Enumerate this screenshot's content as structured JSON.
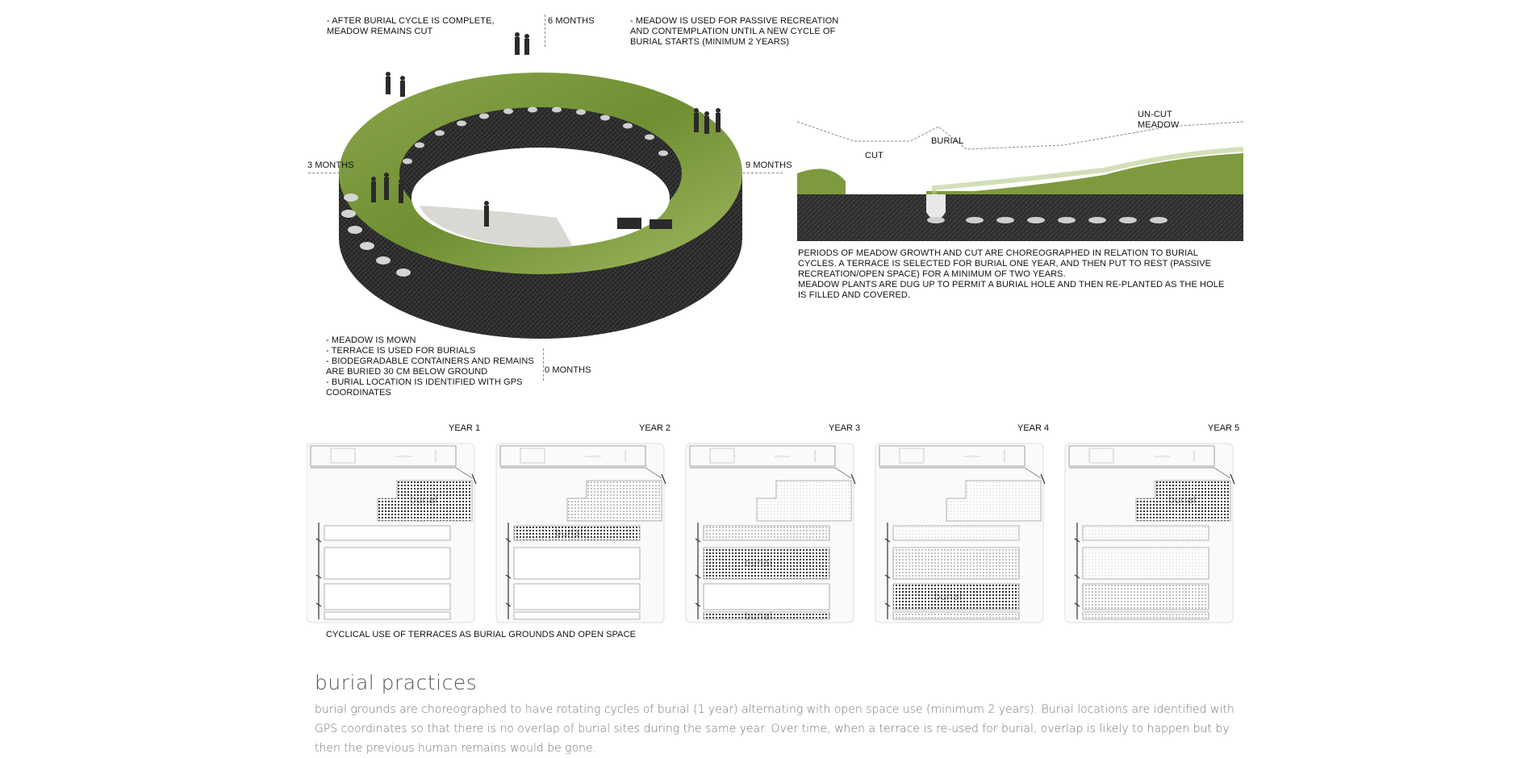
{
  "ring": {
    "labels": {
      "six_months": "6 MONTHS",
      "three_months": "3 MONTHS",
      "nine_months": "9 MONTHS",
      "zero_months": "0 MONTHS"
    },
    "notes": {
      "top_left": "- AFTER BURIAL CYCLE IS COMPLETE,\nMEADOW REMAINS CUT",
      "top_right": "- MEADOW IS USED FOR PASSIVE RECREATION\nAND CONTEMPLATION UNTIL A NEW CYCLE OF\nBURIAL STARTS (MINIMUM 2 YEARS)",
      "bottom_left": "- MEADOW IS MOWN\n- TERRACE IS USED FOR BURIALS\n- BIODEGRADABLE CONTAINERS AND REMAINS\nARE BURIED 30 CM BELOW GROUND\n- BURIAL LOCATION IS IDENTIFIED WITH GPS\nCOORDINATES"
    }
  },
  "section": {
    "labels": {
      "cut": "CUT",
      "burial": "BURIAL",
      "uncut": "UN-CUT\nMEADOW"
    },
    "description": "PERIODS OF MEADOW GROWTH AND CUT ARE CHOREOGRAPHED IN RELATION TO BURIAL\nCYCLES. A TERRACE IS SELECTED FOR BURIAL ONE YEAR, AND THEN PUT TO REST (PASSIVE\nRECREATION/OPEN SPACE) FOR A MINIMUM OF TWO YEARS.\nMEADOW PLANTS ARE DUG UP TO PERMIT A BURIAL HOLE AND THEN RE-PLANTED AS THE HOLE\nIS FILLED AND COVERED."
  },
  "plans": {
    "years": [
      "YEAR 1",
      "YEAR 2",
      "YEAR 3",
      "YEAR 4",
      "YEAR 5"
    ],
    "burial_word": "burial",
    "caption": "CYCLICAL USE OF TERRACES AS BURIAL GROUNDS AND OPEN SPACE"
  },
  "footer": {
    "title": "burial practices",
    "text": "burial grounds are choreographed to have rotating cycles of burial (1 year) alternating with open space use (minimum 2 years). Burial locations are identified with GPS coordinates so that there is no overlap of burial sites during the same year. Over time, when a terrace is re-used for burial, overlap is likely to happen but by then the previous human remains would be gone."
  }
}
